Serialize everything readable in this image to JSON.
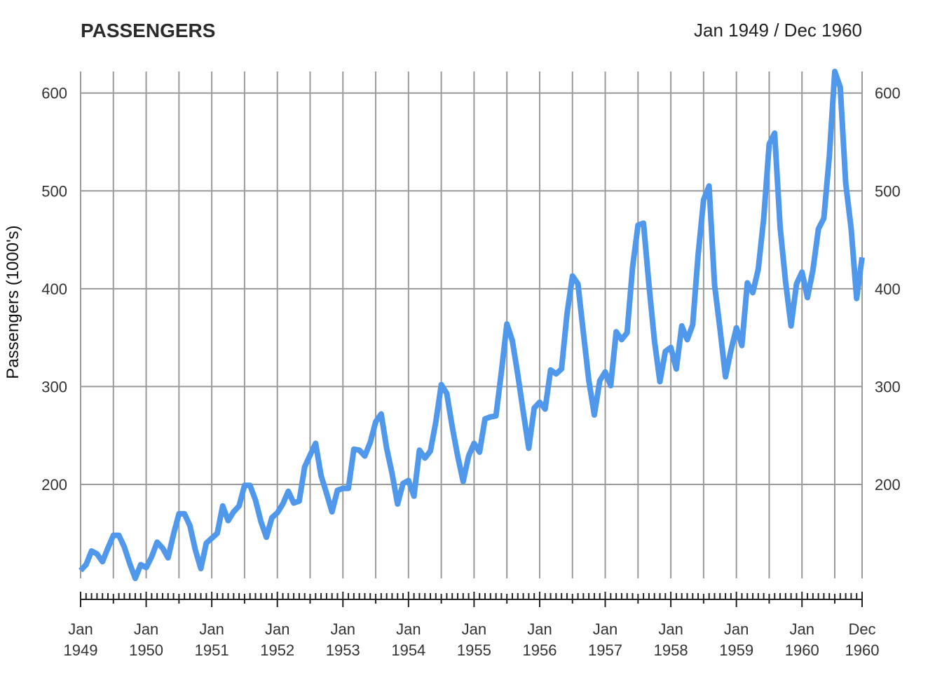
{
  "chart_data": {
    "type": "line",
    "title": "PASSENGERS",
    "date_range": "Jan 1949 / Dec 1960",
    "ylabel": "Passengers (1000's)",
    "xlabel": "",
    "ylim": [
      104,
      622
    ],
    "y_ticks": [
      200,
      300,
      400,
      500,
      600
    ],
    "grid": true,
    "line_color": "#4f98ec",
    "x_ticks": [
      {
        "month_index": 0,
        "line1": "Jan",
        "line2": "1949"
      },
      {
        "month_index": 12,
        "line1": "Jan",
        "line2": "1950"
      },
      {
        "month_index": 24,
        "line1": "Jan",
        "line2": "1951"
      },
      {
        "month_index": 36,
        "line1": "Jan",
        "line2": "1952"
      },
      {
        "month_index": 48,
        "line1": "Jan",
        "line2": "1953"
      },
      {
        "month_index": 60,
        "line1": "Jan",
        "line2": "1954"
      },
      {
        "month_index": 72,
        "line1": "Jan",
        "line2": "1955"
      },
      {
        "month_index": 84,
        "line1": "Jan",
        "line2": "1956"
      },
      {
        "month_index": 96,
        "line1": "Jan",
        "line2": "1957"
      },
      {
        "month_index": 108,
        "line1": "Jan",
        "line2": "1958"
      },
      {
        "month_index": 120,
        "line1": "Jan",
        "line2": "1959"
      },
      {
        "month_index": 132,
        "line1": "Jan",
        "line2": "1960"
      },
      {
        "month_index": 143,
        "line1": "Dec",
        "line2": "1960"
      }
    ],
    "series": [
      {
        "name": "Passengers",
        "values": [
          112,
          118,
          132,
          129,
          121,
          135,
          148,
          148,
          136,
          119,
          104,
          118,
          115,
          126,
          141,
          135,
          125,
          149,
          170,
          170,
          158,
          133,
          114,
          140,
          145,
          150,
          178,
          163,
          172,
          178,
          199,
          199,
          184,
          162,
          146,
          166,
          171,
          180,
          193,
          181,
          183,
          218,
          230,
          242,
          209,
          191,
          172,
          194,
          196,
          196,
          236,
          235,
          229,
          243,
          264,
          272,
          237,
          211,
          180,
          201,
          204,
          188,
          235,
          227,
          234,
          264,
          302,
          293,
          259,
          229,
          203,
          229,
          242,
          233,
          267,
          269,
          270,
          315,
          364,
          347,
          312,
          274,
          237,
          278,
          284,
          277,
          317,
          313,
          318,
          374,
          413,
          405,
          355,
          306,
          271,
          306,
          315,
          301,
          356,
          348,
          355,
          422,
          465,
          467,
          404,
          347,
          305,
          336,
          340,
          318,
          362,
          348,
          363,
          435,
          491,
          505,
          404,
          359,
          310,
          337,
          360,
          342,
          406,
          396,
          420,
          472,
          548,
          559,
          463,
          407,
          362,
          405,
          417,
          391,
          419,
          461,
          472,
          535,
          622,
          606,
          508,
          461,
          390,
          432
        ]
      }
    ]
  }
}
